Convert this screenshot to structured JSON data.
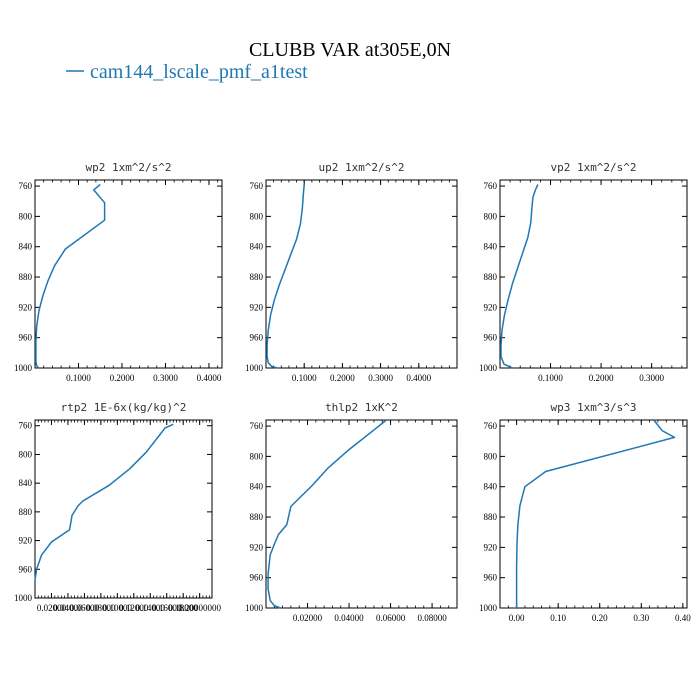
{
  "figure": {
    "title": "CLUBB VAR at305E,0N",
    "legend": [
      {
        "label": "cam144_lscale_pmf_a1test",
        "color": "#1f77b4"
      }
    ]
  },
  "chart_data": [
    {
      "type": "line",
      "title": "wp2  1xm^2/s^2",
      "xlim": [
        0,
        0.43
      ],
      "ylim": [
        1000,
        752
      ],
      "xticks": [
        0.1,
        0.2,
        0.3,
        0.4
      ],
      "xtick_labels": [
        "0.1000",
        "0.2000",
        "0.3000",
        "0.4000"
      ],
      "yticks": [
        760,
        800,
        840,
        880,
        920,
        960,
        1000
      ],
      "ytick_labels": [
        "760",
        "800",
        "840",
        "880",
        "920",
        "960",
        "1000"
      ],
      "series": [
        {
          "name": "cam144_lscale_pmf_a1test",
          "color": "#1f77b4",
          "x": [
            0.15,
            0.135,
            0.16,
            0.16,
            0.07,
            0.045,
            0.03,
            0.018,
            0.009,
            0.004,
            0.002,
            0.002,
            0.002,
            0.004,
            0.008
          ],
          "y": [
            758,
            765,
            782,
            805,
            843,
            865,
            885,
            905,
            925,
            945,
            965,
            985,
            992,
            997,
            1000
          ]
        }
      ]
    },
    {
      "type": "line",
      "title": "up2  1xm^2/s^2",
      "xlim": [
        0,
        0.5
      ],
      "ylim": [
        1000,
        752
      ],
      "xticks": [
        0.1,
        0.2,
        0.3,
        0.4
      ],
      "xtick_labels": [
        "0.1000",
        "0.2000",
        "0.3000",
        "0.4000"
      ],
      "yticks": [
        760,
        800,
        840,
        880,
        920,
        960,
        1000
      ],
      "ytick_labels": [
        "760",
        "800",
        "840",
        "880",
        "920",
        "960",
        "1000"
      ],
      "series": [
        {
          "name": "cam144_lscale_pmf_a1test",
          "color": "#1f77b4",
          "x": [
            0.1,
            0.098,
            0.095,
            0.09,
            0.08,
            0.065,
            0.05,
            0.035,
            0.022,
            0.012,
            0.006,
            0.003,
            0.003,
            0.006,
            0.015,
            0.03
          ],
          "y": [
            758,
            770,
            790,
            810,
            830,
            850,
            870,
            890,
            910,
            930,
            950,
            970,
            985,
            993,
            998,
            1000
          ]
        }
      ]
    },
    {
      "type": "line",
      "title": "vp2  1xm^2/s^2",
      "xlim": [
        0,
        0.37
      ],
      "ylim": [
        1000,
        752
      ],
      "xticks": [
        0.1,
        0.2,
        0.3
      ],
      "xtick_labels": [
        "0.1000",
        "0.2000",
        "0.3000"
      ],
      "yticks": [
        760,
        800,
        840,
        880,
        920,
        960,
        1000
      ],
      "ytick_labels": [
        "760",
        "800",
        "840",
        "880",
        "920",
        "960",
        "1000"
      ],
      "series": [
        {
          "name": "cam144_lscale_pmf_a1test",
          "color": "#1f77b4",
          "x": [
            0.075,
            0.07,
            0.065,
            0.063,
            0.061,
            0.055,
            0.045,
            0.035,
            0.025,
            0.016,
            0.009,
            0.004,
            0.002,
            0.002,
            0.008,
            0.025
          ],
          "y": [
            758,
            765,
            775,
            790,
            808,
            828,
            848,
            868,
            888,
            910,
            930,
            950,
            970,
            985,
            995,
            1000
          ]
        }
      ]
    },
    {
      "type": "line",
      "title": "rtp2  1E-6x(kg/kg)^2",
      "xlim": [
        0,
        0.215
      ],
      "ylim": [
        1000,
        752
      ],
      "xticks": [
        0.02,
        0.04,
        0.06,
        0.08,
        0.1,
        0.12,
        0.14,
        0.16,
        0.18,
        0.2
      ],
      "xtick_labels": [
        "0.02000",
        "0.04000",
        "0.06000",
        "0.08000",
        "0.10000",
        "0.12000",
        "0.14000",
        "0.16000",
        "0.18000",
        "0.20000000"
      ],
      "yticks": [
        760,
        800,
        840,
        880,
        920,
        960,
        1000
      ],
      "ytick_labels": [
        "760",
        "800",
        "840",
        "880",
        "920",
        "960",
        "1000"
      ],
      "series": [
        {
          "name": "cam144_lscale_pmf_a1test",
          "color": "#1f77b4",
          "x": [
            0.168,
            0.158,
            0.15,
            0.135,
            0.115,
            0.09,
            0.058,
            0.052,
            0.045,
            0.042,
            0.02,
            0.008,
            0.002,
            0.0
          ],
          "y": [
            758,
            763,
            775,
            797,
            820,
            843,
            865,
            872,
            885,
            905,
            922,
            940,
            960,
            975
          ]
        }
      ]
    },
    {
      "type": "line",
      "title": "thlp2  1xK^2",
      "xlim": [
        0,
        0.092
      ],
      "ylim": [
        1000,
        752
      ],
      "xticks": [
        0.02,
        0.04,
        0.06,
        0.08
      ],
      "xtick_labels": [
        "0.02000",
        "0.04000",
        "0.06000",
        "0.08000"
      ],
      "yticks": [
        760,
        800,
        840,
        880,
        920,
        960,
        1000
      ],
      "ytick_labels": [
        "760",
        "800",
        "840",
        "880",
        "920",
        "960",
        "1000"
      ],
      "series": [
        {
          "name": "cam144_lscale_pmf_a1test",
          "color": "#1f77b4",
          "x": [
            0.058,
            0.052,
            0.04,
            0.03,
            0.022,
            0.012,
            0.01,
            0.006,
            0.004,
            0.002,
            0.001,
            0.001,
            0.002,
            0.004,
            0.007
          ],
          "y": [
            752,
            765,
            791,
            815,
            839,
            866,
            890,
            903,
            916,
            930,
            955,
            975,
            990,
            997,
            1000
          ]
        }
      ]
    },
    {
      "type": "line",
      "title": "wp3  1xm^3/s^3",
      "xlim": [
        -0.04,
        0.41
      ],
      "ylim": [
        1000,
        752
      ],
      "xticks": [
        0.0,
        0.1,
        0.2,
        0.3,
        0.4
      ],
      "xtick_labels": [
        "0.00",
        "0.10",
        "0.20",
        "0.30",
        "0.40"
      ],
      "yticks": [
        760,
        800,
        840,
        880,
        920,
        960,
        1000
      ],
      "ytick_labels": [
        "760",
        "800",
        "840",
        "880",
        "920",
        "960",
        "1000"
      ],
      "series": [
        {
          "name": "cam144_lscale_pmf_a1test",
          "color": "#1f77b4",
          "x": [
            0.33,
            0.35,
            0.38,
            0.07,
            0.02,
            0.008,
            0.003,
            0.001,
            0.0,
            0.0
          ],
          "y": [
            752,
            766,
            775,
            820,
            840,
            865,
            890,
            915,
            945,
            1000
          ]
        }
      ]
    }
  ]
}
